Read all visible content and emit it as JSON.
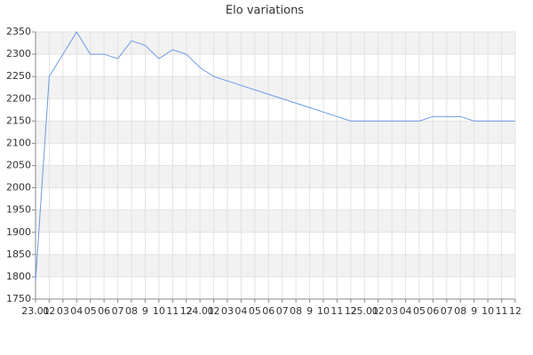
{
  "chart_data": {
    "type": "line",
    "title": "Elo variations",
    "categories": [
      "23.01",
      "02",
      "03",
      "04",
      "05",
      "06",
      "07",
      "08",
      "9",
      "10",
      "11",
      "12",
      "24.01",
      "02",
      "03",
      "04",
      "05",
      "06",
      "07",
      "08",
      "9",
      "10",
      "11",
      "12",
      "25.01",
      "02",
      "03",
      "04",
      "05",
      "06",
      "07",
      "08",
      "9",
      "10",
      "11",
      "12"
    ],
    "series": [
      {
        "name": "Elo",
        "color": "#6a9be6",
        "values": [
          1790,
          2250,
          2300,
          2350,
          2300,
          2300,
          2290,
          2330,
          2320,
          2290,
          2310,
          2300,
          2270,
          2250,
          2240,
          2230,
          2220,
          2210,
          2200,
          2190,
          2180,
          2170,
          2160,
          2150,
          2150,
          2150,
          2150,
          2150,
          2150,
          2160,
          2160,
          2160,
          2150,
          2150,
          2150,
          2150
        ]
      }
    ],
    "ylim": [
      1750,
      2350
    ],
    "yticks": [
      1750,
      1800,
      1850,
      1900,
      1950,
      2000,
      2050,
      2100,
      2150,
      2200,
      2250,
      2300,
      2350
    ],
    "grid": true
  }
}
